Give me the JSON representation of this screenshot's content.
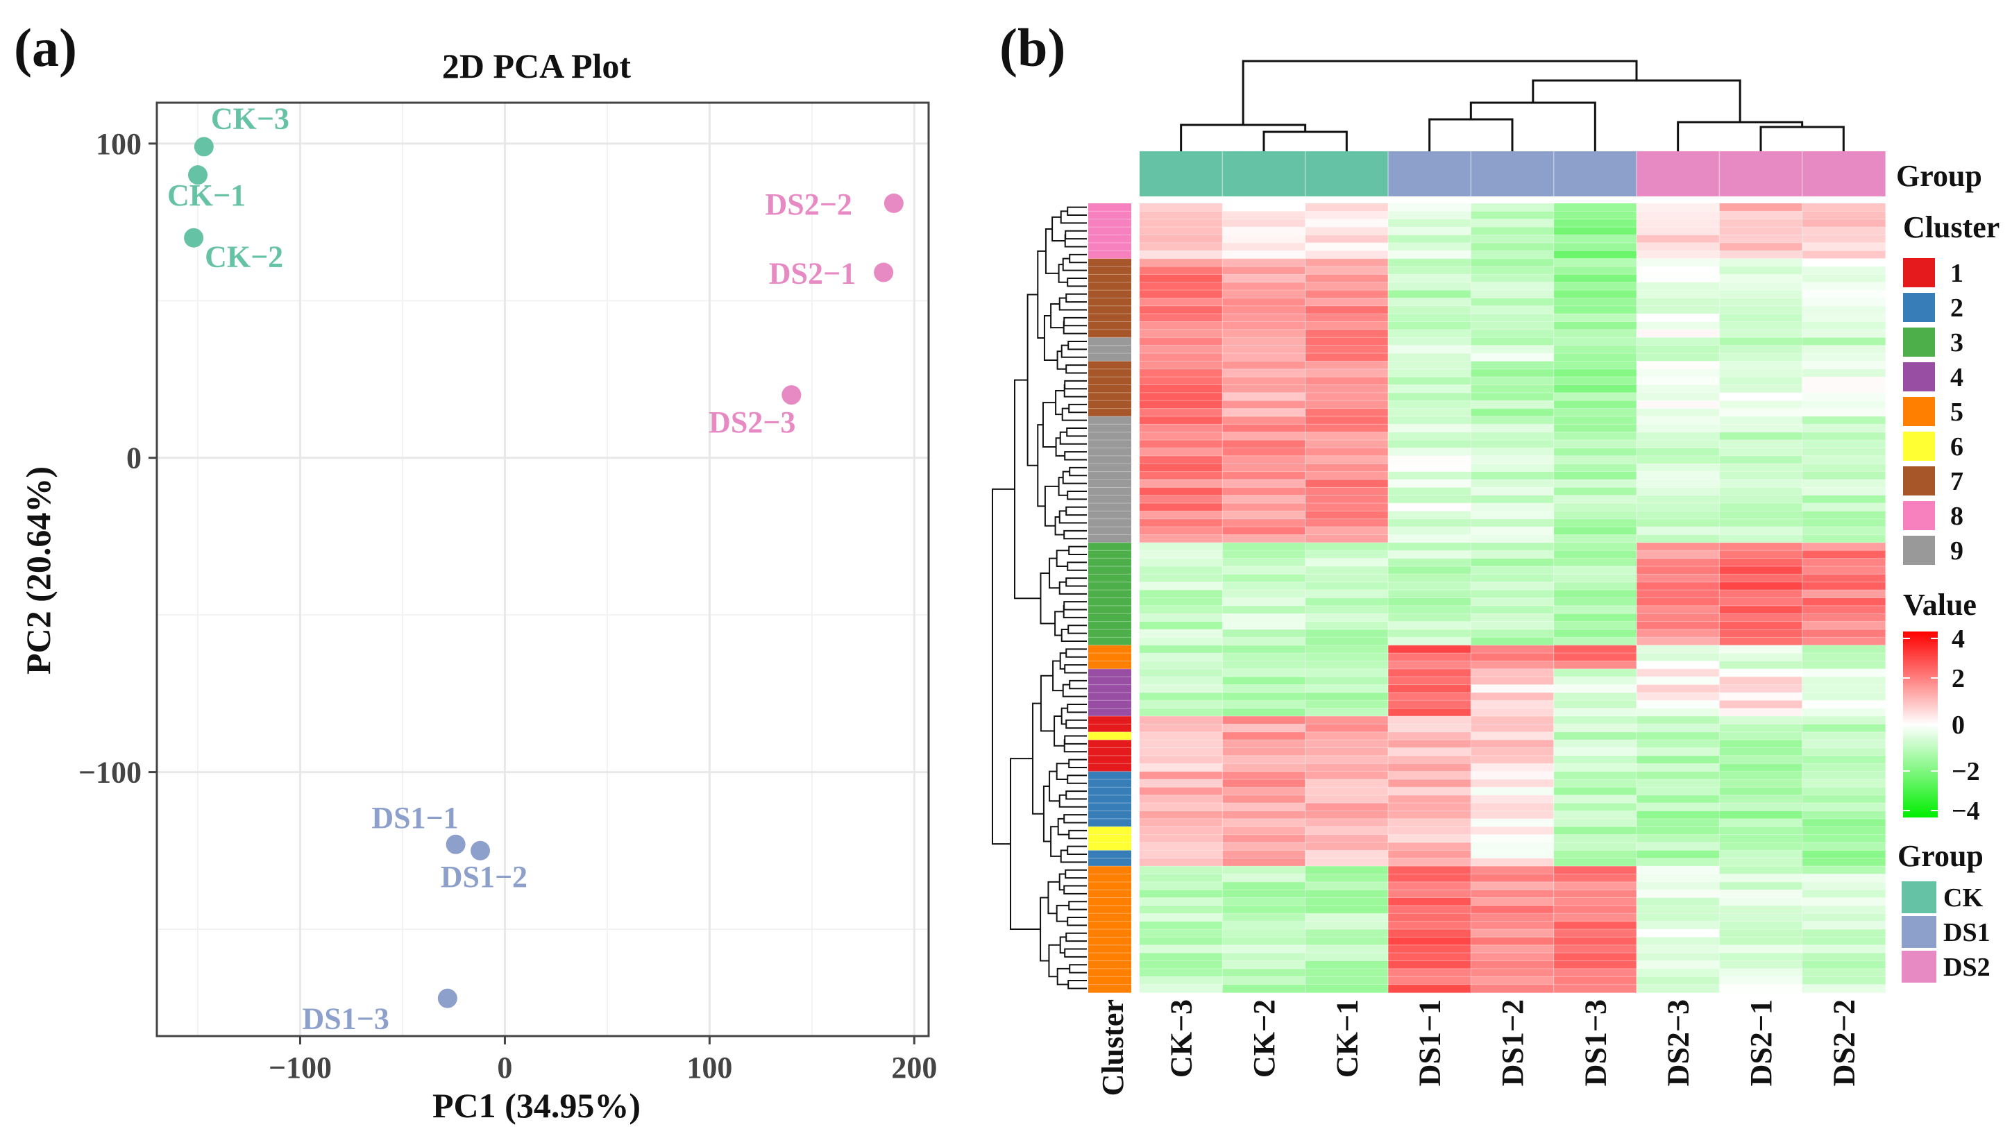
{
  "panels": {
    "a": "(a)",
    "b": "(b)"
  },
  "colors": {
    "CK": "#66c2a5",
    "DS1": "#8da0cb",
    "DS2": "#e78ac3",
    "grid": "#e8e8e8",
    "axis": "#444444"
  },
  "chart_data": [
    {
      "type": "scatter",
      "title": "2D PCA Plot",
      "xlabel": "PC1 (34.95%)",
      "ylabel": "PC2 (20.64%)",
      "xlim": [
        -170,
        207
      ],
      "ylim": [
        -184,
        113
      ],
      "xticks": [
        -100,
        0,
        100,
        200
      ],
      "xtick_labels": [
        "−100",
        "0",
        "100",
        "200"
      ],
      "yticks": [
        -100,
        0,
        100
      ],
      "ytick_labels": [
        "−100",
        "0",
        "100"
      ],
      "grid": true,
      "points": [
        {
          "label": "CK−3",
          "group": "CK",
          "x": -147,
          "y": 99,
          "label_dx": 10,
          "label_dy": -26,
          "anchor": "start"
        },
        {
          "label": "CK−1",
          "group": "CK",
          "x": -150,
          "y": 90,
          "label_dx": -44,
          "label_dy": 44,
          "anchor": "start"
        },
        {
          "label": "CK−2",
          "group": "CK",
          "x": -152,
          "y": 70,
          "label_dx": 16,
          "label_dy": 42,
          "anchor": "start"
        },
        {
          "label": "DS2−2",
          "group": "DS2",
          "x": 190,
          "y": 81,
          "label_dx": -60,
          "label_dy": 16,
          "anchor": "end"
        },
        {
          "label": "DS2−1",
          "group": "DS2",
          "x": 185,
          "y": 59,
          "label_dx": -40,
          "label_dy": 16,
          "anchor": "end"
        },
        {
          "label": "DS2−3",
          "group": "DS2",
          "x": 140,
          "y": 20,
          "label_dx": 6,
          "label_dy": 54,
          "anchor": "end"
        },
        {
          "label": "DS1−1",
          "group": "DS1",
          "x": -24,
          "y": -123,
          "label_dx": 4,
          "label_dy": -24,
          "anchor": "end"
        },
        {
          "label": "DS1−2",
          "group": "DS1",
          "x": -12,
          "y": -125,
          "label_dx": 68,
          "label_dy": 52,
          "anchor": "end"
        },
        {
          "label": "DS1−3",
          "group": "DS1",
          "x": -28,
          "y": -172,
          "label_dx": -84,
          "label_dy": 44,
          "anchor": "end"
        }
      ]
    },
    {
      "type": "heatmap",
      "columns": [
        "CK−3",
        "CK−2",
        "CK−1",
        "DS1−1",
        "DS1−2",
        "DS1−3",
        "DS2−3",
        "DS2−1",
        "DS2−2"
      ],
      "column_groups": [
        "CK",
        "CK",
        "CK",
        "DS1",
        "DS1",
        "DS1",
        "DS2",
        "DS2",
        "DS2"
      ],
      "cluster_axis_label": "Cluster",
      "row_count": 100,
      "row_clusters": [
        {
          "cluster": "8",
          "rows": 7
        },
        {
          "cluster": "7",
          "rows": 10
        },
        {
          "cluster": "9",
          "rows": 3
        },
        {
          "cluster": "7",
          "rows": 7
        },
        {
          "cluster": "9",
          "rows": 16
        },
        {
          "cluster": "3",
          "rows": 13
        },
        {
          "cluster": "5",
          "rows": 3
        },
        {
          "cluster": "4",
          "rows": 6
        },
        {
          "cluster": "1",
          "rows": 2
        },
        {
          "cluster": "6",
          "rows": 1
        },
        {
          "cluster": "1",
          "rows": 4
        },
        {
          "cluster": "2",
          "rows": 7
        },
        {
          "cluster": "6",
          "rows": 3
        },
        {
          "cluster": "2",
          "rows": 2
        },
        {
          "cluster": "5",
          "rows": 16
        }
      ],
      "cluster_means": {
        "8": [
          0.6,
          0.2,
          0.5,
          -0.7,
          -0.9,
          -1.8,
          0.6,
          1.0,
          0.7
        ],
        "7": [
          2.0,
          1.4,
          1.7,
          -1.0,
          -1.1,
          -1.5,
          -0.2,
          -0.5,
          -0.4
        ],
        "9": [
          2.0,
          1.7,
          1.8,
          -0.5,
          -0.7,
          -1.2,
          -0.7,
          -0.8,
          -0.9
        ],
        "3": [
          -0.9,
          -0.8,
          -0.9,
          -0.9,
          -1.0,
          -1.2,
          1.8,
          2.4,
          2.0
        ],
        "5": [
          -0.9,
          -1.0,
          -1.1,
          2.4,
          1.8,
          2.0,
          -0.4,
          -0.6,
          -0.7
        ],
        "4": [
          -1.0,
          -1.1,
          -1.2,
          2.3,
          0.6,
          -0.6,
          0.2,
          0.4,
          -0.3
        ],
        "1": [
          0.6,
          1.5,
          1.3,
          1.0,
          0.8,
          -0.8,
          -1.1,
          -1.2,
          -1.2
        ],
        "2": [
          1.2,
          1.5,
          1.1,
          1.1,
          0.3,
          -1.1,
          -1.2,
          -1.3,
          -1.3
        ],
        "6": [
          1.0,
          1.4,
          1.2,
          0.9,
          0.2,
          -1.0,
          -1.2,
          -1.3,
          -1.3
        ]
      },
      "value_range": [
        -4,
        4
      ],
      "legends": {
        "group_top_title": "Group",
        "cluster_title": "Cluster",
        "clusters": [
          {
            "label": "1",
            "color": "#e41a1c"
          },
          {
            "label": "2",
            "color": "#377eb8"
          },
          {
            "label": "3",
            "color": "#4daf4a"
          },
          {
            "label": "4",
            "color": "#984ea3"
          },
          {
            "label": "5",
            "color": "#ff7f00"
          },
          {
            "label": "6",
            "color": "#ffff33"
          },
          {
            "label": "7",
            "color": "#a65628"
          },
          {
            "label": "8",
            "color": "#f781bf"
          },
          {
            "label": "9",
            "color": "#999999"
          }
        ],
        "value_title": "Value",
        "value_ticks": [
          4,
          2,
          0,
          -2,
          -4
        ],
        "value_tick_labels": [
          "4",
          "2",
          "0",
          "−2",
          "−4"
        ],
        "group_bottom_title": "Group",
        "groups": [
          {
            "label": "CK",
            "color": "#66c2a5"
          },
          {
            "label": "DS1",
            "color": "#8da0cb"
          },
          {
            "label": "DS2",
            "color": "#e78ac3"
          }
        ]
      }
    }
  ]
}
